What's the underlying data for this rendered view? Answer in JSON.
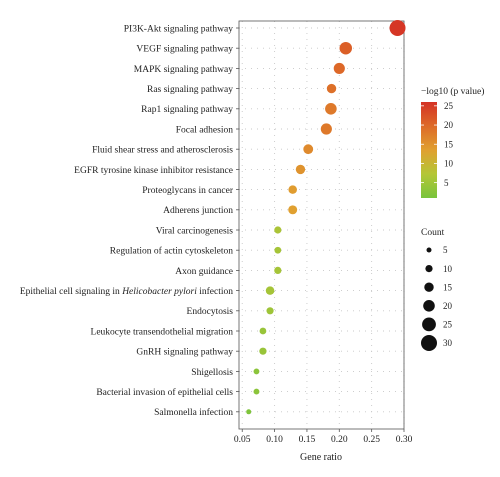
{
  "chart_data": {
    "type": "scatter",
    "xlabel": "Gene ratio",
    "ylabel": "",
    "xlim": [
      0.045,
      0.3
    ],
    "xticks": [
      "0.05",
      "0.10",
      "0.15",
      "0.20",
      "0.25",
      "0.30"
    ],
    "xtick_values": [
      0.05,
      0.1,
      0.15,
      0.2,
      0.25,
      0.3
    ],
    "grid": true,
    "legend_position": "right",
    "categories": [
      "PI3K-Akt signaling pathway",
      "VEGF signaling pathway",
      "MAPK signaling pathway",
      "Ras signaling pathway",
      "Rap1 signaling pathway",
      "Focal adhesion",
      "Fluid shear stress and atherosclerosis",
      "EGFR tyrosine kinase inhibitor resistance",
      "Proteoglycans in cancer",
      "Adherens junction",
      "Viral carcinogenesis",
      "Regulation of actin cytoskeleton",
      "Axon guidance",
      "Epithelial cell signaling in Helicobacter pylori infection",
      "Endocytosis",
      "Leukocyte transendothelial migration",
      "GnRH signaling pathway",
      "Shigellosis",
      "Bacterial invasion of epithelial cells",
      "Salmonella infection"
    ],
    "label_parts": {
      "13": {
        "pre": "Epithelial cell signaling in ",
        "italic": "Helicobacter pylori",
        "post": " infection"
      }
    },
    "gene_ratio": [
      0.29,
      0.21,
      0.2,
      0.188,
      0.187,
      0.18,
      0.152,
      0.14,
      0.128,
      0.128,
      0.105,
      0.105,
      0.105,
      0.093,
      0.093,
      0.082,
      0.082,
      0.072,
      0.072,
      0.06
    ],
    "count": [
      30,
      22,
      19,
      15,
      20,
      19,
      16,
      15,
      13,
      14,
      10,
      9,
      10,
      13,
      10,
      9,
      10,
      7,
      7,
      5
    ],
    "neg_log10_p": [
      25.5,
      21,
      20,
      19,
      18,
      18,
      16,
      15,
      14,
      13.5,
      5,
      4.5,
      4.5,
      4.5,
      4,
      3.5,
      3.5,
      2.5,
      2.5,
      1.5
    ],
    "color_legend": {
      "title": "−log10 (p value)",
      "ticks": [
        5,
        10,
        15,
        20,
        25
      ],
      "range": [
        1,
        26
      ],
      "colors": [
        "#78c43c",
        "#c8c434",
        "#e0a030",
        "#dd6a28",
        "#d43225"
      ]
    },
    "size_legend": {
      "title": "Count",
      "values": [
        5,
        10,
        15,
        20,
        25,
        30
      ]
    }
  }
}
